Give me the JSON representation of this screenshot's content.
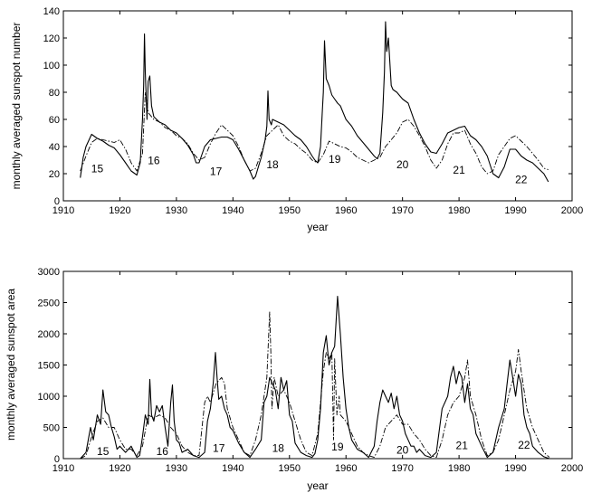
{
  "chart_data": [
    {
      "type": "line",
      "xlabel": "year",
      "ylabel": "monthly averaged sunspot number",
      "xlim": [
        1910,
        2000
      ],
      "ylim": [
        0,
        140
      ],
      "xticks": [
        1910,
        1920,
        1930,
        1940,
        1950,
        1960,
        1970,
        1980,
        1990,
        2000
      ],
      "yticks": [
        0,
        20,
        40,
        60,
        80,
        100,
        120,
        140
      ],
      "grid": false,
      "cycle_labels": [
        {
          "text": "15",
          "x": 1916,
          "y": 21
        },
        {
          "text": "16",
          "x": 1926,
          "y": 27
        },
        {
          "text": "17",
          "x": 1937,
          "y": 19
        },
        {
          "text": "18",
          "x": 1947,
          "y": 24
        },
        {
          "text": "19",
          "x": 1958,
          "y": 28
        },
        {
          "text": "20",
          "x": 1970,
          "y": 24
        },
        {
          "text": "21",
          "x": 1980,
          "y": 20
        },
        {
          "text": "22",
          "x": 1991,
          "y": 13
        }
      ],
      "series": [
        {
          "style": "solid",
          "x": [
            1913,
            1913.5,
            1914,
            1915,
            1916,
            1917,
            1918,
            1919,
            1920,
            1921,
            1922,
            1923,
            1923.6,
            1924,
            1924.2,
            1924.35,
            1924.5,
            1924.8,
            1925,
            1925.3,
            1925.6,
            1926,
            1926.5,
            1927,
            1928,
            1929,
            1930,
            1931,
            1932,
            1933,
            1933.5,
            1934,
            1935,
            1936,
            1937,
            1938,
            1939,
            1940,
            1941,
            1942,
            1943,
            1943.6,
            1944,
            1944.5,
            1945,
            1945.7,
            1946,
            1946.2,
            1946.4,
            1946.8,
            1947,
            1948,
            1949,
            1950,
            1951,
            1952,
            1953,
            1954,
            1954.5,
            1955,
            1955.5,
            1955.8,
            1956,
            1956.2,
            1956.5,
            1957,
            1957.5,
            1958,
            1958.5,
            1959,
            1960,
            1961,
            1962,
            1963,
            1964,
            1965,
            1965.5,
            1966,
            1966.5,
            1966.8,
            1967,
            1967.2,
            1967.5,
            1968,
            1968.3,
            1969,
            1970,
            1971,
            1972,
            1973,
            1974,
            1975,
            1976,
            1977,
            1978,
            1979,
            1980,
            1981,
            1982,
            1983,
            1984,
            1985,
            1986,
            1987,
            1988,
            1989,
            1990,
            1991,
            1992,
            1993,
            1994,
            1995,
            1995.8
          ],
          "y": [
            17,
            32,
            40,
            49,
            46,
            44,
            41,
            39,
            34,
            28,
            22,
            19,
            28,
            60,
            85,
            123,
            95,
            60,
            88,
            92,
            70,
            62,
            60,
            58,
            56,
            52,
            50,
            46,
            41,
            34,
            28,
            28,
            40,
            45,
            46,
            47,
            47,
            45,
            38,
            30,
            22,
            16,
            18,
            25,
            32,
            45,
            55,
            81,
            60,
            56,
            60,
            58,
            56,
            52,
            48,
            45,
            40,
            33,
            30,
            28,
            40,
            65,
            80,
            118,
            90,
            85,
            78,
            75,
            72,
            70,
            60,
            55,
            48,
            43,
            38,
            33,
            31,
            35,
            65,
            95,
            132,
            110,
            120,
            85,
            82,
            80,
            75,
            72,
            60,
            50,
            42,
            36,
            35,
            42,
            50,
            52,
            54,
            55,
            48,
            45,
            40,
            33,
            20,
            17,
            25,
            38,
            38,
            33,
            30,
            28,
            24,
            20,
            14
          ]
        },
        {
          "style": "dashdot",
          "x": [
            1913,
            1914,
            1915,
            1916,
            1917,
            1918,
            1919,
            1920,
            1921,
            1922,
            1923,
            1924,
            1924.5,
            1925,
            1926,
            1927,
            1928,
            1929,
            1930,
            1931,
            1932,
            1933,
            1934,
            1935,
            1936,
            1937,
            1938,
            1939,
            1940,
            1941,
            1942,
            1943,
            1944,
            1945,
            1946,
            1947,
            1948,
            1949,
            1950,
            1951,
            1952,
            1953,
            1954,
            1955,
            1956,
            1957,
            1958,
            1959,
            1960,
            1961,
            1962,
            1963,
            1964,
            1965,
            1966,
            1967,
            1968,
            1969,
            1970,
            1971,
            1972,
            1973,
            1974,
            1975,
            1976,
            1977,
            1978,
            1979,
            1980,
            1981,
            1982,
            1983,
            1984,
            1985,
            1986,
            1987,
            1988,
            1989,
            1990,
            1991,
            1992,
            1993,
            1994,
            1995,
            1995.8
          ],
          "y": [
            22,
            33,
            43,
            46,
            45,
            44,
            43,
            45,
            38,
            28,
            22,
            35,
            80,
            65,
            60,
            58,
            54,
            52,
            48,
            46,
            42,
            35,
            30,
            32,
            42,
            50,
            56,
            52,
            48,
            40,
            30,
            22,
            24,
            35,
            48,
            52,
            56,
            48,
            44,
            42,
            38,
            35,
            30,
            28,
            34,
            44,
            42,
            40,
            39,
            36,
            32,
            30,
            28,
            30,
            32,
            40,
            45,
            50,
            58,
            60,
            55,
            48,
            40,
            30,
            24,
            30,
            42,
            50,
            50,
            52,
            42,
            35,
            25,
            20,
            22,
            34,
            40,
            46,
            48,
            44,
            40,
            35,
            30,
            24,
            23
          ]
        }
      ]
    },
    {
      "type": "line",
      "xlabel": "year",
      "ylabel": "monthly averaged sunspot area",
      "xlim": [
        1910,
        2000
      ],
      "ylim": [
        0,
        3000
      ],
      "xticks": [
        1910,
        1920,
        1930,
        1940,
        1950,
        1960,
        1970,
        1980,
        1990,
        2000
      ],
      "yticks": [
        0,
        500,
        1000,
        1500,
        2000,
        2500,
        3000
      ],
      "grid": false,
      "cycle_labels": [
        {
          "text": "15",
          "x": 1917,
          "y": 60
        },
        {
          "text": "16",
          "x": 1927.5,
          "y": 60
        },
        {
          "text": "17",
          "x": 1937.5,
          "y": 110
        },
        {
          "text": "18",
          "x": 1948,
          "y": 110
        },
        {
          "text": "19",
          "x": 1958.5,
          "y": 130
        },
        {
          "text": "20",
          "x": 1970,
          "y": 80
        },
        {
          "text": "21",
          "x": 1980.5,
          "y": 150
        },
        {
          "text": "22",
          "x": 1991.5,
          "y": 160
        }
      ],
      "series": [
        {
          "style": "solid",
          "x": [
            1913,
            1914,
            1914.8,
            1915.3,
            1916,
            1916.6,
            1917,
            1917.5,
            1918,
            1918.5,
            1919,
            1919.5,
            1920,
            1921,
            1922,
            1923,
            1923.5,
            1924,
            1924.5,
            1925,
            1925.3,
            1925.6,
            1926,
            1926.5,
            1927,
            1927.5,
            1928,
            1928.5,
            1929,
            1929.3,
            1929.6,
            1930,
            1930.5,
            1931,
            1932,
            1933,
            1934,
            1935,
            1935.5,
            1936,
            1936.5,
            1936.9,
            1937.2,
            1937.5,
            1938,
            1938.5,
            1939,
            1939.5,
            1940,
            1941,
            1942,
            1943,
            1944,
            1945,
            1945.5,
            1946,
            1946.5,
            1947,
            1947.5,
            1948,
            1948.5,
            1949,
            1949.5,
            1950,
            1950.5,
            1951,
            1952,
            1953,
            1954,
            1954.5,
            1955,
            1955.5,
            1956,
            1956.5,
            1957,
            1957.5,
            1958,
            1958.5,
            1959,
            1959.5,
            1960,
            1960.5,
            1961,
            1962,
            1963,
            1964,
            1965,
            1965.5,
            1966,
            1966.5,
            1967,
            1967.5,
            1968,
            1968.5,
            1969,
            1969.5,
            1970,
            1970.5,
            1971,
            1971.5,
            1972,
            1972.5,
            1973,
            1974,
            1975,
            1976,
            1977,
            1978,
            1978.5,
            1979,
            1979.5,
            1980,
            1980.5,
            1981,
            1981.5,
            1982,
            1982.5,
            1983,
            1984,
            1985,
            1986,
            1987,
            1988,
            1988.5,
            1989,
            1989.5,
            1990,
            1990.5,
            1991,
            1991.5,
            1992,
            1992.5,
            1993,
            1994,
            1995,
            1996
          ],
          "y": [
            0,
            100,
            500,
            300,
            700,
            550,
            1100,
            750,
            700,
            500,
            350,
            150,
            200,
            100,
            200,
            20,
            50,
            350,
            700,
            550,
            1270,
            700,
            600,
            850,
            750,
            850,
            500,
            200,
            900,
            1180,
            600,
            300,
            250,
            100,
            150,
            50,
            20,
            100,
            600,
            800,
            1200,
            1700,
            1300,
            950,
            1000,
            800,
            700,
            500,
            450,
            250,
            100,
            20,
            150,
            300,
            900,
            1000,
            1300,
            1200,
            1100,
            800,
            1300,
            1100,
            1250,
            700,
            600,
            250,
            100,
            50,
            20,
            80,
            300,
            800,
            1700,
            1970,
            1500,
            1700,
            1800,
            2600,
            2000,
            1300,
            800,
            500,
            300,
            150,
            100,
            20,
            200,
            600,
            900,
            1100,
            1000,
            900,
            1050,
            800,
            1000,
            700,
            600,
            400,
            300,
            200,
            200,
            100,
            150,
            50,
            20,
            100,
            800,
            1000,
            1300,
            1480,
            1200,
            1400,
            1300,
            900,
            1200,
            800,
            700,
            400,
            200,
            20,
            100,
            500,
            800,
            1200,
            1580,
            1300,
            1000,
            1350,
            1200,
            700,
            500,
            400,
            200,
            100,
            30,
            0
          ]
        },
        {
          "style": "dashdot",
          "x": [
            1913,
            1914,
            1915,
            1916,
            1917,
            1918,
            1919,
            1920,
            1921,
            1922,
            1923,
            1924,
            1925,
            1926,
            1927,
            1928,
            1929,
            1930,
            1931,
            1932,
            1933,
            1934,
            1935,
            1935.5,
            1936,
            1937,
            1938,
            1938.5,
            1939,
            1940,
            1941,
            1942,
            1943,
            1944,
            1945,
            1946,
            1946.5,
            1946.7,
            1946.9,
            1947.3,
            1948,
            1949,
            1950,
            1951,
            1952,
            1953,
            1954,
            1955,
            1956,
            1956.5,
            1957,
            1957.5,
            1957.8,
            1958,
            1958.4,
            1958.8,
            1959,
            1960,
            1961,
            1962,
            1963,
            1964,
            1965,
            1966,
            1967,
            1968,
            1969,
            1970,
            1971,
            1972,
            1973,
            1974,
            1975,
            1976,
            1977,
            1978,
            1979,
            1980,
            1981,
            1981.5,
            1982,
            1983,
            1984,
            1985,
            1986,
            1987,
            1988,
            1989,
            1990,
            1990.5,
            1991,
            1992,
            1993,
            1994,
            1995,
            1996
          ],
          "y": [
            0,
            50,
            350,
            600,
            650,
            500,
            500,
            300,
            150,
            150,
            50,
            200,
            700,
            650,
            700,
            650,
            500,
            400,
            200,
            100,
            50,
            50,
            900,
            1000,
            900,
            1200,
            1300,
            1200,
            800,
            500,
            300,
            100,
            50,
            300,
            700,
            1300,
            2350,
            1700,
            800,
            1300,
            1000,
            1100,
            900,
            600,
            300,
            100,
            50,
            400,
            1400,
            1700,
            1600,
            1700,
            300,
            1600,
            700,
            1000,
            700,
            600,
            400,
            200,
            100,
            50,
            20,
            200,
            500,
            600,
            700,
            550,
            550,
            400,
            300,
            150,
            50,
            20,
            300,
            700,
            900,
            1000,
            1300,
            1580,
            1000,
            700,
            300,
            50,
            100,
            300,
            700,
            1100,
            1400,
            1750,
            1400,
            800,
            500,
            300,
            100,
            20
          ]
        }
      ]
    }
  ]
}
